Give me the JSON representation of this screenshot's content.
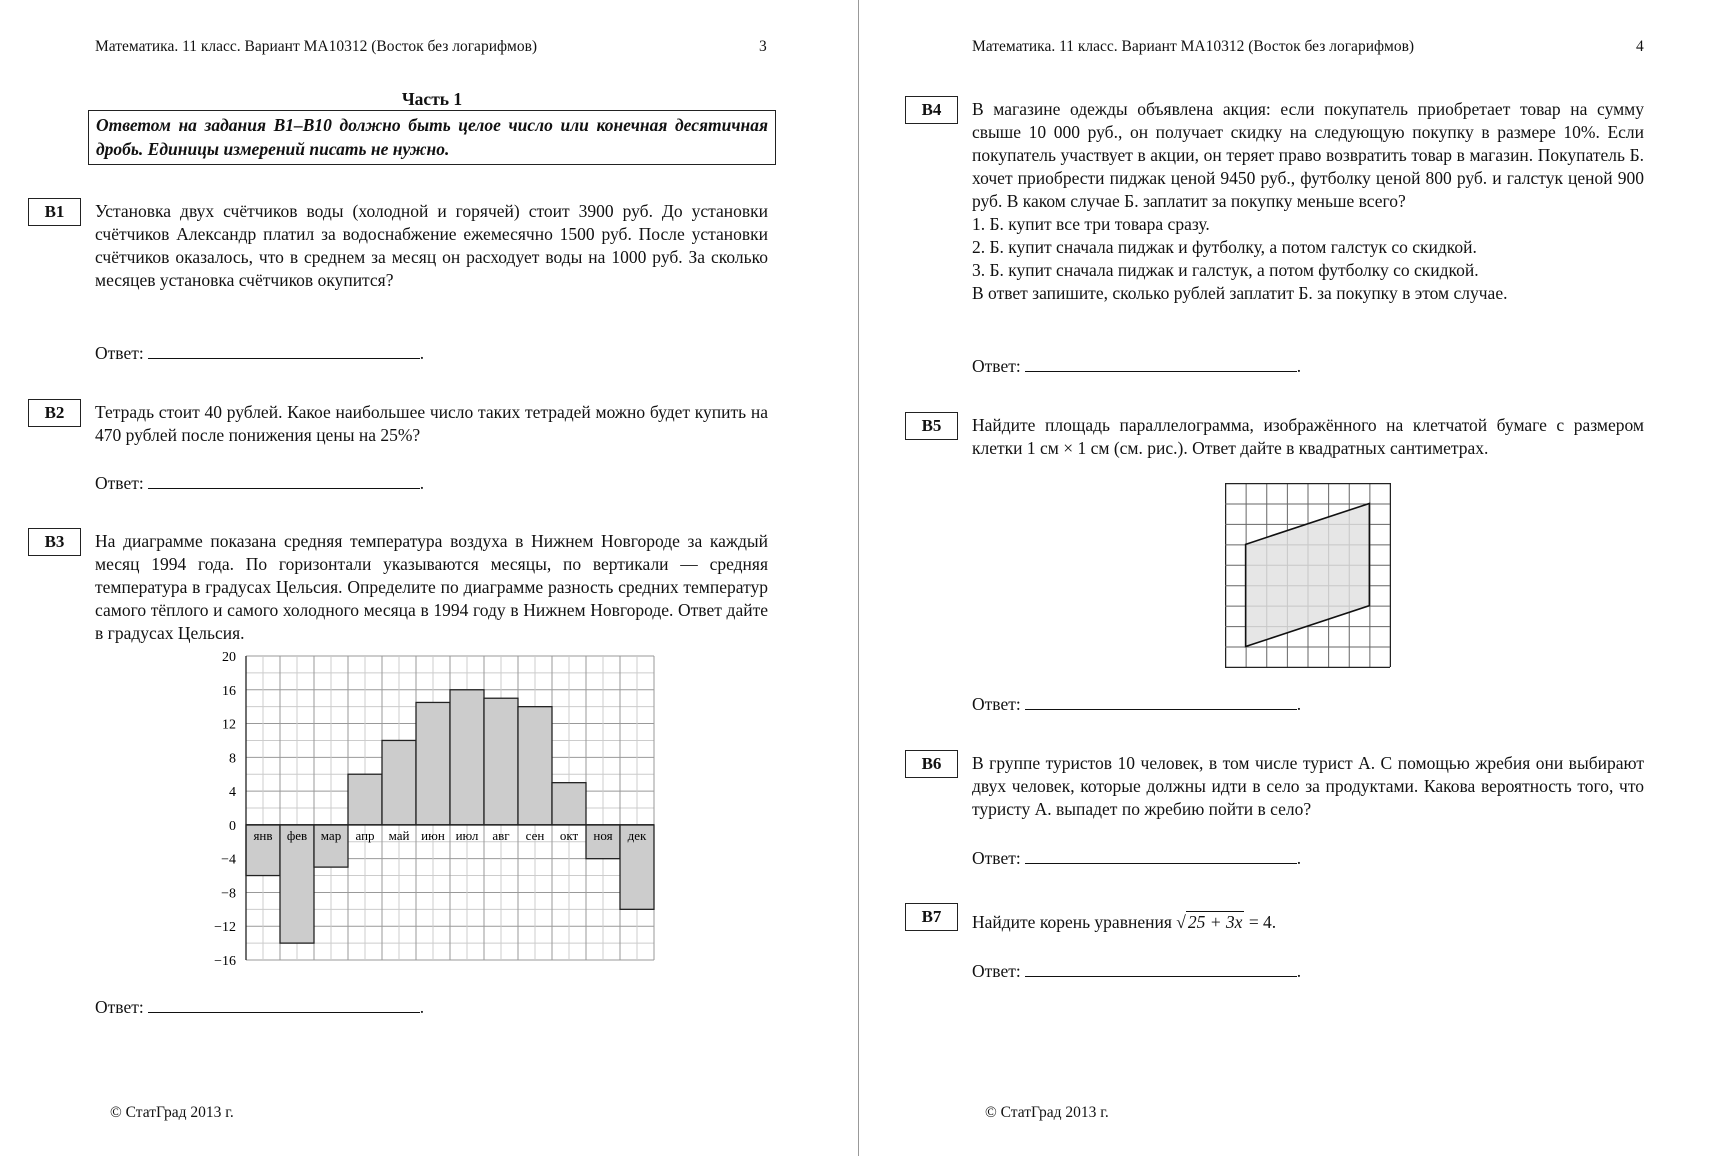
{
  "left_page": {
    "header": "Математика. 11 класс. Вариант МА10312 (Восток без логарифмов)",
    "page_number": "3",
    "part_title": "Часть 1",
    "instruction": "Ответом на задания B1–B10 должно быть целое число или конечная десятичная дробь. Единицы измерений писать не нужно.",
    "tasks": [
      {
        "label": "B1",
        "text": "Установка двух счётчиков воды (холодной и горячей) стоит 3900 руб. До установки счётчиков Александр платил за водоснабжение ежемесячно 1500 руб. После установки счётчиков оказалось, что в среднем за месяц он расходует воды на 1000 руб. За сколько месяцев установка счётчиков окупится?",
        "answer_label": "Ответ:"
      },
      {
        "label": "B2",
        "text": "Тетрадь стоит 40 рублей. Какое наибольшее число таких тетрадей можно будет купить на 470 рублей после понижения цены на 25%?",
        "answer_label": "Ответ:"
      },
      {
        "label": "B3",
        "text": "На диаграмме показана средняя температура воздуха в Нижнем Новгороде за каждый месяц 1994 года. По горизонтали указываются месяцы, по вертикали — средняя температура в градусах Цельсия. Определите по диаграмме разность средних температур самого тёплого и самого холодного месяца в 1994 году в Нижнем Новгороде. Ответ дайте в градусах Цельсия.",
        "answer_label": "Ответ:"
      }
    ],
    "footer": "© СтатГрад 2013 г."
  },
  "right_page": {
    "header": "Математика. 11 класс. Вариант МА10312 (Восток без логарифмов)",
    "page_number": "4",
    "tasks": [
      {
        "label": "B4",
        "text": "В магазине одежды объявлена акция: если покупатель приобретает товар на сумму свыше 10 000 руб., он получает скидку на следующую покупку в размере 10%. Если покупатель участвует в акции, он теряет право возвратить товар в магазин. Покупатель Б. хочет приобрести пиджак ценой 9450 руб., футболку ценой 800 руб. и галстук ценой 900 руб. В каком случае Б. заплатит за покупку меньше всего?",
        "options": [
          "1. Б. купит все три товара сразу.",
          "2. Б. купит сначала пиджак и футболку, а потом галстук со скидкой.",
          "3. Б. купит сначала пиджак и галстук, а потом футболку со скидкой."
        ],
        "note": "В ответ запишите, сколько рублей заплатит Б. за покупку в этом случае.",
        "answer_label": "Ответ:"
      },
      {
        "label": "B5",
        "text": "Найдите площадь параллелограмма, изображённого на клетчатой бумаге с размером клетки 1 см × 1 см (см. рис.). Ответ дайте в квадратных сантиметрах.",
        "answer_label": "Ответ:"
      },
      {
        "label": "B6",
        "text": "В группе туристов 10 человек, в том числе турист А. С помощью жребия они выбирают двух человек, которые должны идти в село за продуктами. Какова вероятность того, что туристу А. выпадет по жребию пойти в село?",
        "answer_label": "Ответ:"
      },
      {
        "label": "B7",
        "text_before": "Найдите корень уравнения",
        "sqrt_arg": "25 + 3x",
        "text_after": "= 4.",
        "answer_label": "Ответ:"
      }
    ],
    "footer": "© СтатГрад 2013 г."
  },
  "figure_b5": {
    "grid_cols": 8,
    "grid_rows": 9,
    "parallelogram": [
      [
        1,
        3
      ],
      [
        7,
        1
      ],
      [
        7,
        6
      ],
      [
        1,
        8
      ]
    ],
    "fill": "#e0e0e0"
  },
  "chart_data": {
    "type": "bar",
    "categories": [
      "янв",
      "фев",
      "мар",
      "апр",
      "май",
      "июн",
      "июл",
      "авг",
      "сен",
      "окт",
      "ноя",
      "дек"
    ],
    "values": [
      -6,
      -14,
      -5,
      6,
      10,
      14.5,
      16,
      15,
      14,
      5,
      -4,
      -10
    ],
    "ylim": [
      -16,
      20
    ],
    "yticks": [
      "20",
      "16",
      "12",
      "8",
      "4",
      "0",
      "−4",
      "−8",
      "−12",
      "−16"
    ],
    "grid": true,
    "bar_color": "#cccccc"
  }
}
